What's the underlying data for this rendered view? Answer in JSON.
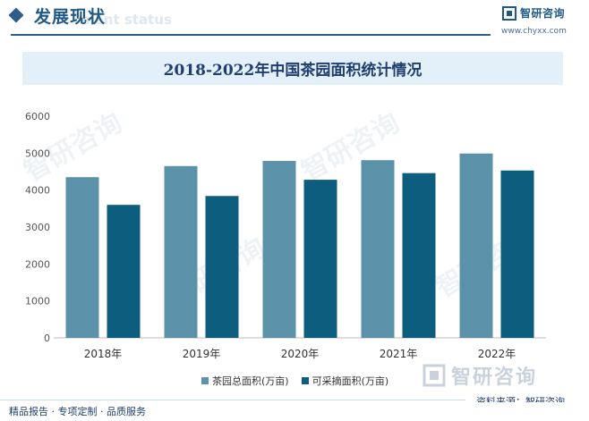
{
  "header": {
    "title": "发展现状",
    "subtitle_faint": "ment status",
    "brand_name": "智研咨询",
    "brand_url": "www.chyxx.com"
  },
  "chart_data": {
    "type": "bar",
    "title": "2018-2022年中国茶园面积统计情况",
    "categories": [
      "2018年",
      "2019年",
      "2020年",
      "2021年",
      "2022年"
    ],
    "series": [
      {
        "name": "茶园总面积(万亩)",
        "color": "#5b92aa",
        "values": [
          4350,
          4650,
          4790,
          4810,
          4990
        ]
      },
      {
        "name": "可采摘面积(万亩)",
        "color": "#0d5e7e",
        "values": [
          3600,
          3840,
          4280,
          4460,
          4530
        ]
      }
    ],
    "ylim": [
      0,
      6000
    ],
    "yticks": [
      0,
      1000,
      2000,
      3000,
      4000,
      5000,
      6000
    ],
    "xlabel": "",
    "ylabel": "",
    "legend_position": "bottom"
  },
  "watermark": {
    "brand_name": "智研咨询",
    "source_label": "资料来源：智研咨询"
  },
  "footer": {
    "text": "精品报告 · 专项定制 · 品质服务"
  }
}
